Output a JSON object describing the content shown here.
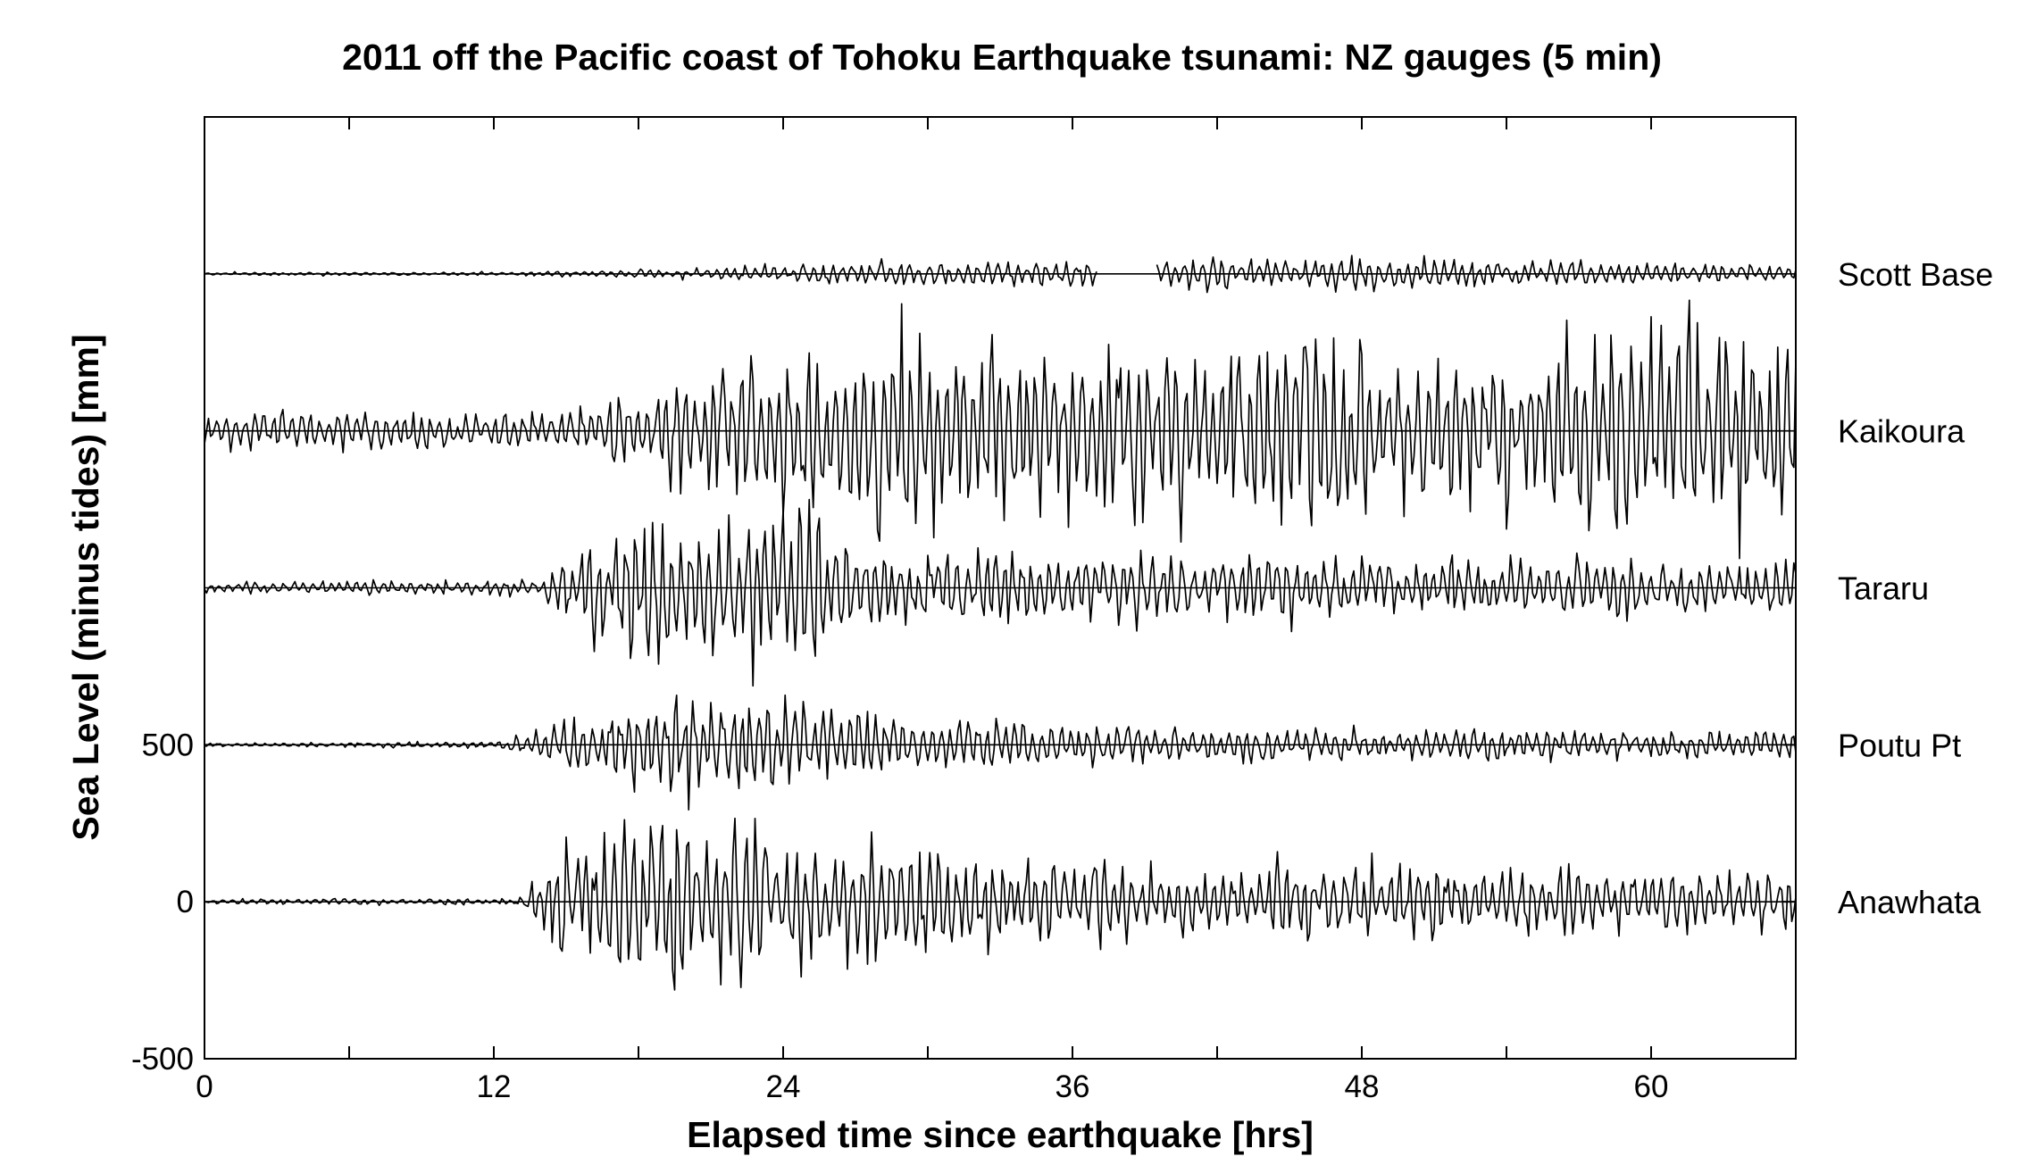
{
  "chart_data": {
    "type": "line",
    "title": "2011 off the Pacific coast of Tohoku Earthquake tsunami: NZ gauges (5 min)",
    "xlabel": "Elapsed time since earthquake [hrs]",
    "ylabel": "Sea Level (minus tides) [mm]",
    "xlim": [
      0,
      66
    ],
    "ylim": [
      -500,
      2500
    ],
    "x_ticks": [
      0,
      12,
      24,
      36,
      48,
      60
    ],
    "x_tick_labels": [
      "0",
      "12",
      "24",
      "36",
      "48",
      "60"
    ],
    "y_ticks": [
      -500,
      0,
      500
    ],
    "y_tick_labels": [
      "-500",
      "0",
      "500"
    ],
    "grid": false,
    "sample_interval_min": 5,
    "series": [
      {
        "name": "Scott Base",
        "offset": 2000,
        "envelope_hours": [
          0,
          13,
          22,
          26,
          36,
          38,
          48,
          66
        ],
        "envelope_amplitude_mm": [
          5,
          5,
          20,
          35,
          40,
          55,
          45,
          30
        ],
        "gaps_hours": [
          [
            37,
            39.5
          ]
        ]
      },
      {
        "name": "Kaikoura",
        "offset": 1500,
        "envelope_hours": [
          0,
          12,
          16,
          22,
          26,
          28,
          38,
          46,
          50,
          62,
          66
        ],
        "envelope_amplitude_mm": [
          55,
          50,
          65,
          210,
          270,
          310,
          240,
          330,
          190,
          330,
          230
        ],
        "gaps_hours": []
      },
      {
        "name": "Tararu",
        "offset": 1000,
        "envelope_hours": [
          0,
          14,
          16,
          19,
          22,
          25,
          27,
          36,
          46,
          66
        ],
        "envelope_amplitude_mm": [
          15,
          25,
          150,
          260,
          220,
          260,
          130,
          90,
          100,
          80
        ],
        "gaps_hours": []
      },
      {
        "name": "Poutu Pt",
        "offset": 500,
        "envelope_hours": [
          0,
          12,
          16,
          19,
          21,
          25,
          30,
          40,
          66
        ],
        "envelope_amplitude_mm": [
          5,
          10,
          90,
          150,
          160,
          110,
          80,
          50,
          40
        ],
        "gaps_hours": []
      },
      {
        "name": "Anawhata",
        "offset": 0,
        "envelope_hours": [
          0,
          13,
          15,
          19,
          21,
          25,
          28,
          36,
          44,
          66
        ],
        "envelope_amplitude_mm": [
          8,
          10,
          180,
          300,
          250,
          180,
          170,
          110,
          110,
          85
        ],
        "gaps_hours": []
      }
    ]
  }
}
